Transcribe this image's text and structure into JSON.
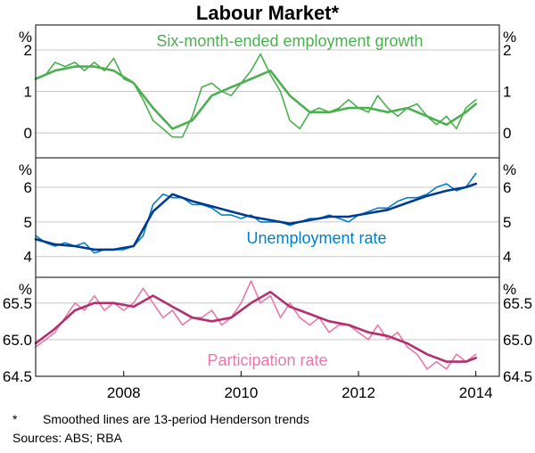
{
  "chart_data": {
    "type": "line",
    "title": "Labour Market*",
    "x_ticks": [
      "2008",
      "2010",
      "2012",
      "2014"
    ],
    "x_range": [
      2006.5,
      2014.4
    ],
    "panels": [
      {
        "label": "Six-month-ended employment growth",
        "unit": "%",
        "y_range": [
          -0.6,
          2.6
        ],
        "y_ticks": [
          "2",
          "1",
          "0"
        ],
        "y_tick_values": [
          2,
          1,
          0
        ],
        "color": "#4caf50",
        "series": [
          {
            "name": "raw",
            "x": [
              2006.5,
              2006.67,
              2006.83,
              2007.0,
              2007.17,
              2007.33,
              2007.5,
              2007.67,
              2007.83,
              2008.0,
              2008.17,
              2008.33,
              2008.5,
              2008.67,
              2008.83,
              2009.0,
              2009.17,
              2009.33,
              2009.5,
              2009.67,
              2009.83,
              2010.0,
              2010.17,
              2010.33,
              2010.5,
              2010.67,
              2010.83,
              2011.0,
              2011.17,
              2011.33,
              2011.5,
              2011.67,
              2011.83,
              2012.0,
              2012.17,
              2012.33,
              2012.5,
              2012.67,
              2012.83,
              2013.0,
              2013.17,
              2013.33,
              2013.5,
              2013.67,
              2013.83,
              2014.0
            ],
            "y": [
              1.3,
              1.4,
              1.7,
              1.6,
              1.7,
              1.5,
              1.7,
              1.5,
              1.8,
              1.3,
              1.2,
              0.8,
              0.3,
              0.1,
              -0.1,
              -0.1,
              0.4,
              1.1,
              1.2,
              1.0,
              0.9,
              1.2,
              1.5,
              1.9,
              1.4,
              1.0,
              0.3,
              0.1,
              0.5,
              0.6,
              0.5,
              0.6,
              0.8,
              0.6,
              0.5,
              0.9,
              0.6,
              0.4,
              0.6,
              0.7,
              0.4,
              0.2,
              0.4,
              0.1,
              0.6,
              0.8
            ]
          },
          {
            "name": "trend",
            "x": [
              2006.5,
              2006.83,
              2007.17,
              2007.5,
              2007.83,
              2008.17,
              2008.5,
              2008.83,
              2009.17,
              2009.5,
              2009.83,
              2010.17,
              2010.5,
              2010.83,
              2011.17,
              2011.5,
              2011.83,
              2012.17,
              2012.5,
              2012.83,
              2013.17,
              2013.5,
              2013.83,
              2014.0
            ],
            "y": [
              1.3,
              1.5,
              1.6,
              1.6,
              1.5,
              1.2,
              0.6,
              0.1,
              0.3,
              0.9,
              1.1,
              1.3,
              1.5,
              0.9,
              0.5,
              0.5,
              0.6,
              0.6,
              0.5,
              0.6,
              0.4,
              0.2,
              0.5,
              0.7
            ]
          }
        ]
      },
      {
        "label": "Unemployment rate",
        "unit": "%",
        "y_range": [
          3.4,
          6.85
        ],
        "y_ticks": [
          "6",
          "5",
          "4"
        ],
        "y_tick_values": [
          6,
          5,
          4
        ],
        "color": "#0080c8",
        "trend_color": "#003b8e",
        "series": [
          {
            "name": "raw",
            "x": [
              2006.5,
              2006.67,
              2006.83,
              2007.0,
              2007.17,
              2007.33,
              2007.5,
              2007.67,
              2007.83,
              2008.0,
              2008.17,
              2008.33,
              2008.5,
              2008.67,
              2008.83,
              2009.0,
              2009.17,
              2009.33,
              2009.5,
              2009.67,
              2009.83,
              2010.0,
              2010.17,
              2010.33,
              2010.5,
              2010.67,
              2010.83,
              2011.0,
              2011.17,
              2011.33,
              2011.5,
              2011.67,
              2011.83,
              2012.0,
              2012.17,
              2012.33,
              2012.5,
              2012.67,
              2012.83,
              2013.0,
              2013.17,
              2013.33,
              2013.5,
              2013.67,
              2013.83,
              2014.0
            ],
            "y": [
              4.6,
              4.4,
              4.3,
              4.4,
              4.3,
              4.4,
              4.1,
              4.2,
              4.2,
              4.2,
              4.3,
              4.6,
              5.5,
              5.8,
              5.7,
              5.7,
              5.5,
              5.5,
              5.4,
              5.2,
              5.2,
              5.1,
              5.2,
              5.0,
              5.0,
              5.0,
              4.9,
              5.0,
              5.1,
              5.1,
              5.2,
              5.1,
              5.0,
              5.2,
              5.3,
              5.4,
              5.4,
              5.6,
              5.7,
              5.7,
              5.8,
              6.0,
              6.1,
              5.9,
              6.0,
              6.4
            ]
          },
          {
            "name": "trend",
            "x": [
              2006.5,
              2006.83,
              2007.17,
              2007.5,
              2007.83,
              2008.17,
              2008.5,
              2008.83,
              2009.17,
              2009.5,
              2009.83,
              2010.17,
              2010.5,
              2010.83,
              2011.17,
              2011.5,
              2011.83,
              2012.17,
              2012.5,
              2012.83,
              2013.17,
              2013.5,
              2013.83,
              2014.0
            ],
            "y": [
              4.5,
              4.35,
              4.3,
              4.2,
              4.2,
              4.3,
              5.3,
              5.8,
              5.6,
              5.45,
              5.3,
              5.15,
              5.05,
              4.95,
              5.05,
              5.15,
              5.15,
              5.25,
              5.35,
              5.55,
              5.75,
              5.9,
              6.0,
              6.1
            ]
          }
        ]
      },
      {
        "label": "Participation rate",
        "unit": "%",
        "y_range": [
          64.5,
          65.85
        ],
        "y_ticks": [
          "65.5",
          "65.0",
          "64.5"
        ],
        "y_tick_values": [
          65.5,
          65.0,
          64.5
        ],
        "color": "#e879a8",
        "trend_color": "#b03070",
        "series": [
          {
            "name": "raw",
            "x": [
              2006.5,
              2006.67,
              2006.83,
              2007.0,
              2007.17,
              2007.33,
              2007.5,
              2007.67,
              2007.83,
              2008.0,
              2008.17,
              2008.33,
              2008.5,
              2008.67,
              2008.83,
              2009.0,
              2009.17,
              2009.33,
              2009.5,
              2009.67,
              2009.83,
              2010.0,
              2010.17,
              2010.33,
              2010.5,
              2010.67,
              2010.83,
              2011.0,
              2011.17,
              2011.33,
              2011.5,
              2011.67,
              2011.83,
              2012.0,
              2012.17,
              2012.33,
              2012.5,
              2012.67,
              2012.83,
              2013.0,
              2013.17,
              2013.33,
              2013.5,
              2013.67,
              2013.83,
              2014.0
            ],
            "y": [
              64.9,
              65.0,
              65.1,
              65.3,
              65.5,
              65.4,
              65.6,
              65.4,
              65.5,
              65.4,
              65.5,
              65.7,
              65.5,
              65.3,
              65.4,
              65.2,
              65.3,
              65.3,
              65.4,
              65.2,
              65.3,
              65.5,
              65.8,
              65.5,
              65.6,
              65.3,
              65.5,
              65.3,
              65.2,
              65.3,
              65.1,
              65.2,
              65.2,
              65.1,
              65.0,
              65.2,
              65.0,
              65.1,
              64.9,
              64.8,
              64.6,
              64.7,
              64.6,
              64.8,
              64.7,
              64.8
            ]
          },
          {
            "name": "trend",
            "x": [
              2006.5,
              2006.83,
              2007.17,
              2007.5,
              2007.83,
              2008.17,
              2008.5,
              2008.83,
              2009.17,
              2009.5,
              2009.83,
              2010.17,
              2010.5,
              2010.83,
              2011.17,
              2011.5,
              2011.83,
              2012.17,
              2012.5,
              2012.83,
              2013.17,
              2013.5,
              2013.83,
              2014.0
            ],
            "y": [
              64.95,
              65.15,
              65.4,
              65.5,
              65.5,
              65.45,
              65.6,
              65.45,
              65.3,
              65.25,
              65.3,
              65.5,
              65.65,
              65.45,
              65.35,
              65.25,
              65.2,
              65.1,
              65.05,
              64.95,
              64.8,
              64.7,
              64.7,
              64.75
            ]
          }
        ]
      }
    ]
  },
  "footnote": {
    "marker": "*",
    "text": "Smoothed lines are 13-period Henderson trends"
  },
  "sources": "Sources:  ABS; RBA"
}
